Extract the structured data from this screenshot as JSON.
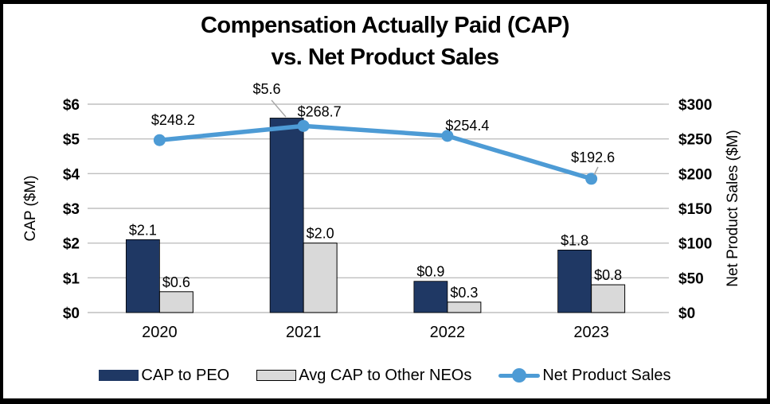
{
  "title": {
    "line1": "Compensation Actually Paid (CAP)",
    "line2": "vs. Net Product Sales"
  },
  "chart_data": {
    "type": "bar+line combo",
    "categories": [
      "2020",
      "2021",
      "2022",
      "2023"
    ],
    "series": [
      {
        "name": "CAP to PEO",
        "render": "bar",
        "axis": "left",
        "values": [
          2.1,
          5.6,
          0.9,
          1.8
        ],
        "labels": [
          "$2.1",
          "$5.6",
          "$0.9",
          "$1.8"
        ]
      },
      {
        "name": "Avg CAP to Other NEOs",
        "render": "bar",
        "axis": "left",
        "values": [
          0.6,
          2.0,
          0.3,
          0.8
        ],
        "labels": [
          "$0.6",
          "$2.0",
          "$0.3",
          "$0.8"
        ]
      },
      {
        "name": "Net Product Sales",
        "render": "line",
        "axis": "right",
        "values": [
          248.2,
          268.7,
          254.4,
          192.6
        ],
        "labels": [
          "$248.2",
          "$268.7",
          "$254.4",
          "$192.6"
        ]
      }
    ],
    "left_axis": {
      "title": "CAP ($M)",
      "min": 0,
      "max": 6,
      "ticks": [
        "$0",
        "$1",
        "$2",
        "$3",
        "$4",
        "$5",
        "$6"
      ]
    },
    "right_axis": {
      "title": "Net Product Sales ($M)",
      "min": 0,
      "max": 300,
      "ticks": [
        "$0",
        "$50",
        "$100",
        "$150",
        "$200",
        "$250",
        "$300"
      ]
    },
    "grid": true,
    "legend_position": "bottom"
  },
  "legend": {
    "items": [
      {
        "label": "CAP to PEO",
        "swatch": "navy-bar"
      },
      {
        "label": "Avg CAP to Other NEOs",
        "swatch": "gray-bar"
      },
      {
        "label": "Net Product Sales",
        "swatch": "blue-line-marker"
      }
    ]
  },
  "colors": {
    "bar_navy": "#1F3864",
    "bar_gray": "#D9D9D9",
    "bar_border": "#000000",
    "line_blue": "#4D9BD5",
    "gridline": "#BFBFBF",
    "leader": "#A6A6A6",
    "text": "#000000",
    "frame": "#000000"
  }
}
